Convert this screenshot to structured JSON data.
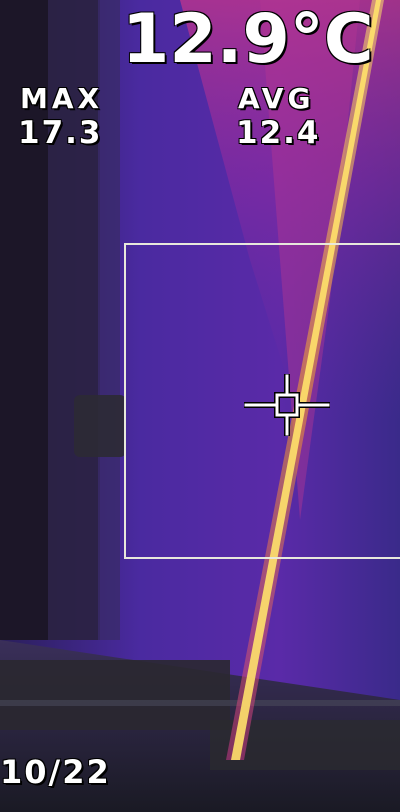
{
  "readout": {
    "temperature": "12.9°C",
    "max_label": "MAX",
    "max_value": "17.3",
    "avg_label": "AVG",
    "avg_value": "12.4",
    "timestamp": "10/22"
  },
  "colors": {
    "cold": "#3a2a8a",
    "mid": "#7a2a9a",
    "warm": "#c8368a",
    "hot": "#f59a2a",
    "hottest": "#ffe26a",
    "overlay": "#e8e8dc"
  }
}
